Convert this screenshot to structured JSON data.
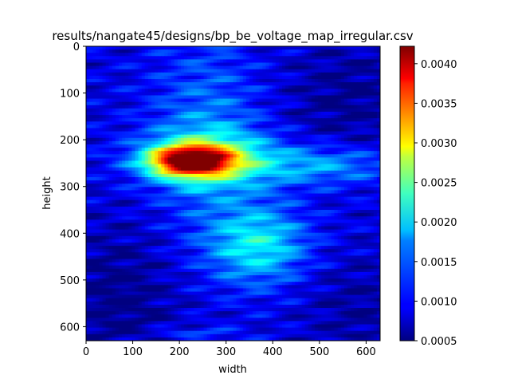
{
  "chart_data": {
    "type": "heatmap",
    "title": "results/nangate45/designs/bp_be_voltage_map_irregular.csv",
    "xlabel": "width",
    "ylabel": "height",
    "xlim": [
      0,
      630
    ],
    "ylim": [
      630,
      0
    ],
    "x_ticks": [
      "0",
      "100",
      "200",
      "300",
      "400",
      "500",
      "600"
    ],
    "y_ticks": [
      "0",
      "100",
      "200",
      "300",
      "400",
      "500",
      "600"
    ],
    "colormap": "jet",
    "colorbar": {
      "range": [
        0.0005,
        0.00422
      ],
      "ticks": [
        "0.0005",
        "0.0010",
        "0.0015",
        "0.0020",
        "0.0025",
        "0.0030",
        "0.0035",
        "0.0040"
      ]
    },
    "grid": false,
    "features": [
      {
        "name": "hotspot",
        "x": [
          150,
          320
        ],
        "y": [
          205,
          285
        ],
        "peak_value": 0.0042
      },
      {
        "name": "column band",
        "x": [
          180,
          340
        ],
        "y": [
          60,
          330
        ],
        "value": 0.0014
      },
      {
        "name": "right-middle region",
        "x": [
          280,
          470
        ],
        "y": [
          360,
          490
        ],
        "value": 0.002
      },
      {
        "name": "right band",
        "x": [
          350,
          630
        ],
        "y": [
          220,
          290
        ],
        "value": 0.0017
      }
    ]
  }
}
